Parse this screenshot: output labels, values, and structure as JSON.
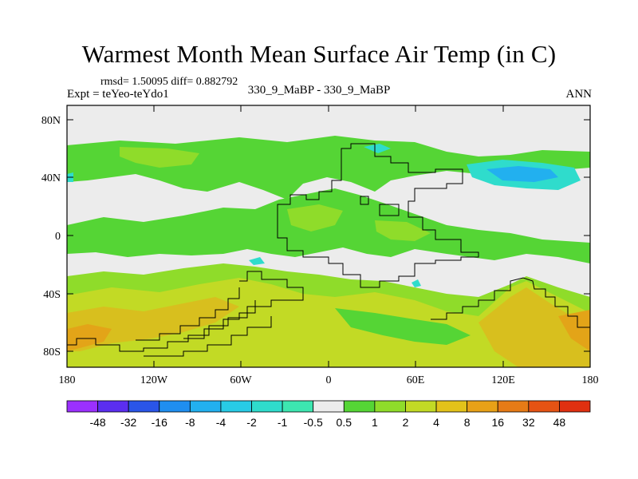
{
  "title": "Warmest Month Mean Surface Air Temp (in C)",
  "stats": "rmsd= 1.50095 diff= 0.882792",
  "expt": "Expt = teYeo-teYdo1",
  "subtitle": "330_9_MaBP - 330_9_MaBP",
  "period": "ANN",
  "lat_labels": [
    "80N",
    "40N",
    "0",
    "40S",
    "80S"
  ],
  "lon_labels": [
    "180",
    "120W",
    "60W",
    "0",
    "60E",
    "120E",
    "180"
  ],
  "colorbar": {
    "labels": [
      "-48",
      "-32",
      "-16",
      "-8",
      "-4",
      "-2",
      "-1",
      "-0.5",
      "0.5",
      "1",
      "2",
      "4",
      "8",
      "16",
      "32",
      "48"
    ],
    "colors": [
      "#9b30ff",
      "#5b2ef0",
      "#2a55e8",
      "#1f8ef0",
      "#22b0ef",
      "#28cbe6",
      "#2fdccc",
      "#3de6b0",
      "#ececec",
      "#55d535",
      "#8fdc2a",
      "#c2da25",
      "#e3c21a",
      "#e8a117",
      "#e67b16",
      "#e55314",
      "#e03010"
    ]
  },
  "palette": {
    "land_neutral": "#ececec",
    "pos_small": "#55d535",
    "pos_mid": "#8fdc2a",
    "pos_large": "#c2da25",
    "pos_warm": "#d8bf1e",
    "pos_hot": "#e3a418",
    "neg_small": "#2fdccc",
    "neg_mid": "#22b0ef"
  }
}
